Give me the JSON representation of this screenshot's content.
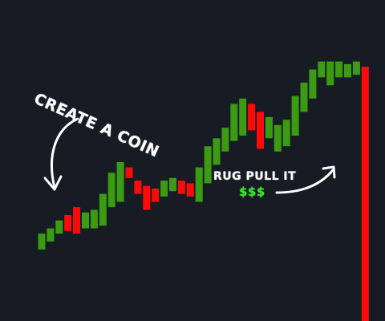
{
  "chart_data": {
    "type": "candlestick",
    "title": "",
    "xlabel": "",
    "ylabel": "",
    "axes_visible": false,
    "grid": false,
    "ylim": [
      0,
      100
    ],
    "colors": {
      "up": "#3b9b12",
      "down": "#ff0a0a",
      "background": "#171b24"
    },
    "candles": [
      {
        "open": 27,
        "close": 33,
        "dir": "up"
      },
      {
        "open": 30,
        "close": 35,
        "dir": "up"
      },
      {
        "open": 33,
        "close": 38,
        "dir": "up"
      },
      {
        "open": 40,
        "close": 34,
        "dir": "down"
      },
      {
        "open": 43,
        "close": 33,
        "dir": "down"
      },
      {
        "open": 35,
        "close": 41,
        "dir": "up"
      },
      {
        "open": 35,
        "close": 42,
        "dir": "up"
      },
      {
        "open": 36,
        "close": 48,
        "dir": "up"
      },
      {
        "open": 43,
        "close": 56,
        "dir": "up"
      },
      {
        "open": 45,
        "close": 60,
        "dir": "up"
      },
      {
        "open": 58,
        "close": 54,
        "dir": "down"
      },
      {
        "open": 53,
        "close": 48,
        "dir": "down"
      },
      {
        "open": 51,
        "close": 42,
        "dir": "down"
      },
      {
        "open": 50,
        "close": 45,
        "dir": "down"
      },
      {
        "open": 47,
        "close": 53,
        "dir": "up"
      },
      {
        "open": 49,
        "close": 54,
        "dir": "up"
      },
      {
        "open": 53,
        "close": 48,
        "dir": "down"
      },
      {
        "open": 52,
        "close": 47,
        "dir": "down"
      },
      {
        "open": 45,
        "close": 58,
        "dir": "up"
      },
      {
        "open": 52,
        "close": 66,
        "dir": "up"
      },
      {
        "open": 59,
        "close": 69,
        "dir": "up"
      },
      {
        "open": 64,
        "close": 73,
        "dir": "up"
      },
      {
        "open": 68,
        "close": 82,
        "dir": "up"
      },
      {
        "open": 70,
        "close": 84,
        "dir": "up"
      },
      {
        "open": 82,
        "close": 72,
        "dir": "down"
      },
      {
        "open": 79,
        "close": 65,
        "dir": "down"
      },
      {
        "open": 69,
        "close": 77,
        "dir": "up"
      },
      {
        "open": 64,
        "close": 74,
        "dir": "up"
      },
      {
        "open": 66,
        "close": 76,
        "dir": "up"
      },
      {
        "open": 70,
        "close": 85,
        "dir": "up"
      },
      {
        "open": 79,
        "close": 90,
        "dir": "up"
      },
      {
        "open": 84,
        "close": 95,
        "dir": "up"
      },
      {
        "open": 92,
        "close": 98,
        "dir": "up"
      },
      {
        "open": 89,
        "close": 98,
        "dir": "up"
      },
      {
        "open": 92,
        "close": 98,
        "dir": "up"
      },
      {
        "open": 92,
        "close": 97,
        "dir": "up"
      },
      {
        "open": 93,
        "close": 98,
        "dir": "up"
      },
      {
        "open": 96,
        "close": 0,
        "dir": "down"
      }
    ],
    "annotations": [
      {
        "id": "create",
        "text": "CREATE A COIN"
      },
      {
        "id": "rug",
        "text": "RUG PULL IT"
      },
      {
        "id": "money",
        "text": "$$$"
      }
    ]
  }
}
